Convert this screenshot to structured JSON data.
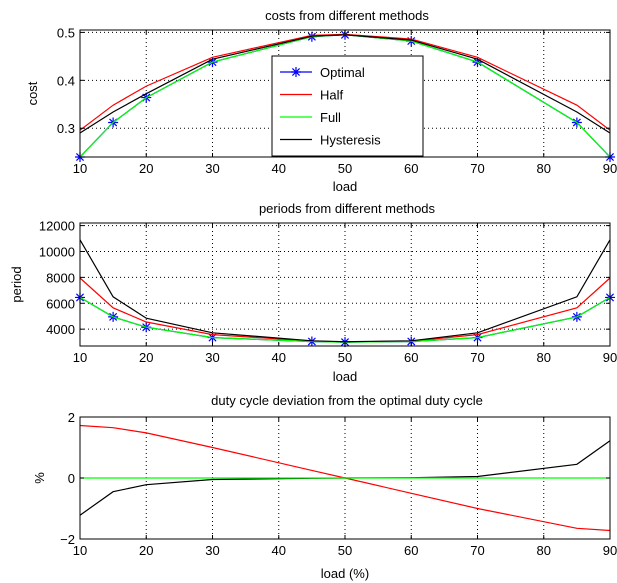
{
  "chart_data": [
    {
      "type": "line",
      "title": "costs from different methods",
      "xlabel": "load",
      "ylabel": "cost",
      "xlim": [
        10,
        90
      ],
      "ylim": [
        0.24,
        0.505
      ],
      "xticks": [
        10,
        20,
        30,
        40,
        50,
        60,
        70,
        80,
        90
      ],
      "yticks": [
        0.3,
        0.4,
        0.5
      ],
      "ytick_labels": [
        "0.3",
        "0.4",
        "0.5"
      ],
      "grid": true,
      "legend": "center",
      "x": [
        10,
        15,
        20,
        30,
        45,
        50,
        60,
        70,
        85,
        90
      ],
      "series": [
        {
          "name": "Optimal",
          "color": "#0000ff",
          "marker": "*",
          "values": [
            0.24,
            0.312,
            0.364,
            0.438,
            0.491,
            0.495,
            0.482,
            0.438,
            0.312,
            0.24
          ]
        },
        {
          "name": "Half",
          "color": "#ff0000",
          "marker": "",
          "values": [
            0.296,
            0.348,
            0.388,
            0.448,
            0.494,
            0.496,
            0.486,
            0.448,
            0.348,
            0.296
          ]
        },
        {
          "name": "Full",
          "color": "#00ff00",
          "marker": "",
          "values": [
            0.24,
            0.312,
            0.364,
            0.438,
            0.491,
            0.495,
            0.482,
            0.438,
            0.312,
            0.24
          ]
        },
        {
          "name": "Hysteresis",
          "color": "#000000",
          "marker": "",
          "values": [
            0.29,
            0.334,
            0.372,
            0.444,
            0.492,
            0.495,
            0.484,
            0.444,
            0.334,
            0.29
          ]
        }
      ]
    },
    {
      "type": "line",
      "title": "periods from different methods",
      "xlabel": "load",
      "ylabel": "period",
      "xlim": [
        10,
        90
      ],
      "ylim": [
        2700,
        12200
      ],
      "xticks": [
        10,
        20,
        30,
        40,
        50,
        60,
        70,
        80,
        90
      ],
      "yticks": [
        4000,
        6000,
        8000,
        10000,
        12000
      ],
      "ytick_labels": [
        "4000",
        "6000",
        "8000",
        "10000",
        "12000"
      ],
      "grid": true,
      "legend": "",
      "x": [
        10,
        15,
        20,
        30,
        45,
        50,
        60,
        70,
        85,
        90
      ],
      "series": [
        {
          "color": "#0000ff",
          "marker": "*",
          "values": [
            6450,
            4950,
            4150,
            3350,
            3050,
            3000,
            3050,
            3350,
            4950,
            6450
          ]
        },
        {
          "color": "#ff0000",
          "marker": "",
          "values": [
            7950,
            5650,
            4550,
            3580,
            3080,
            3010,
            3080,
            3580,
            5650,
            7950
          ]
        },
        {
          "color": "#00ff00",
          "marker": "",
          "values": [
            6450,
            4950,
            4150,
            3350,
            3050,
            3000,
            3050,
            3350,
            4950,
            6450
          ]
        },
        {
          "color": "#000000",
          "marker": "",
          "values": [
            10900,
            6500,
            4850,
            3720,
            3100,
            3030,
            3100,
            3720,
            6500,
            10900
          ]
        }
      ]
    },
    {
      "type": "line",
      "title": "duty cycle deviation from the optimal duty cycle",
      "xlabel": "load (%)",
      "ylabel": "%",
      "xlim": [
        10,
        90
      ],
      "ylim": [
        -2,
        2
      ],
      "xticks": [
        10,
        20,
        30,
        40,
        50,
        60,
        70,
        80,
        90
      ],
      "yticks": [
        -2,
        0,
        2
      ],
      "ytick_labels": [
        "−2",
        "0",
        "2"
      ],
      "grid": true,
      "legend": "",
      "x": [
        10,
        15,
        20,
        30,
        45,
        50,
        60,
        70,
        85,
        90
      ],
      "series": [
        {
          "color": "#ff0000",
          "marker": "",
          "values": [
            1.72,
            1.65,
            1.48,
            1.0,
            0.25,
            0.0,
            -0.5,
            -1.0,
            -1.65,
            -1.72
          ]
        },
        {
          "color": "#000000",
          "marker": "",
          "values": [
            -1.22,
            -0.45,
            -0.22,
            -0.05,
            -0.01,
            0.0,
            0.01,
            0.05,
            0.45,
            1.22
          ]
        },
        {
          "color": "#00ff00",
          "marker": "",
          "values": [
            0,
            0,
            0,
            0,
            0,
            0,
            0,
            0,
            0,
            0
          ]
        }
      ]
    }
  ]
}
